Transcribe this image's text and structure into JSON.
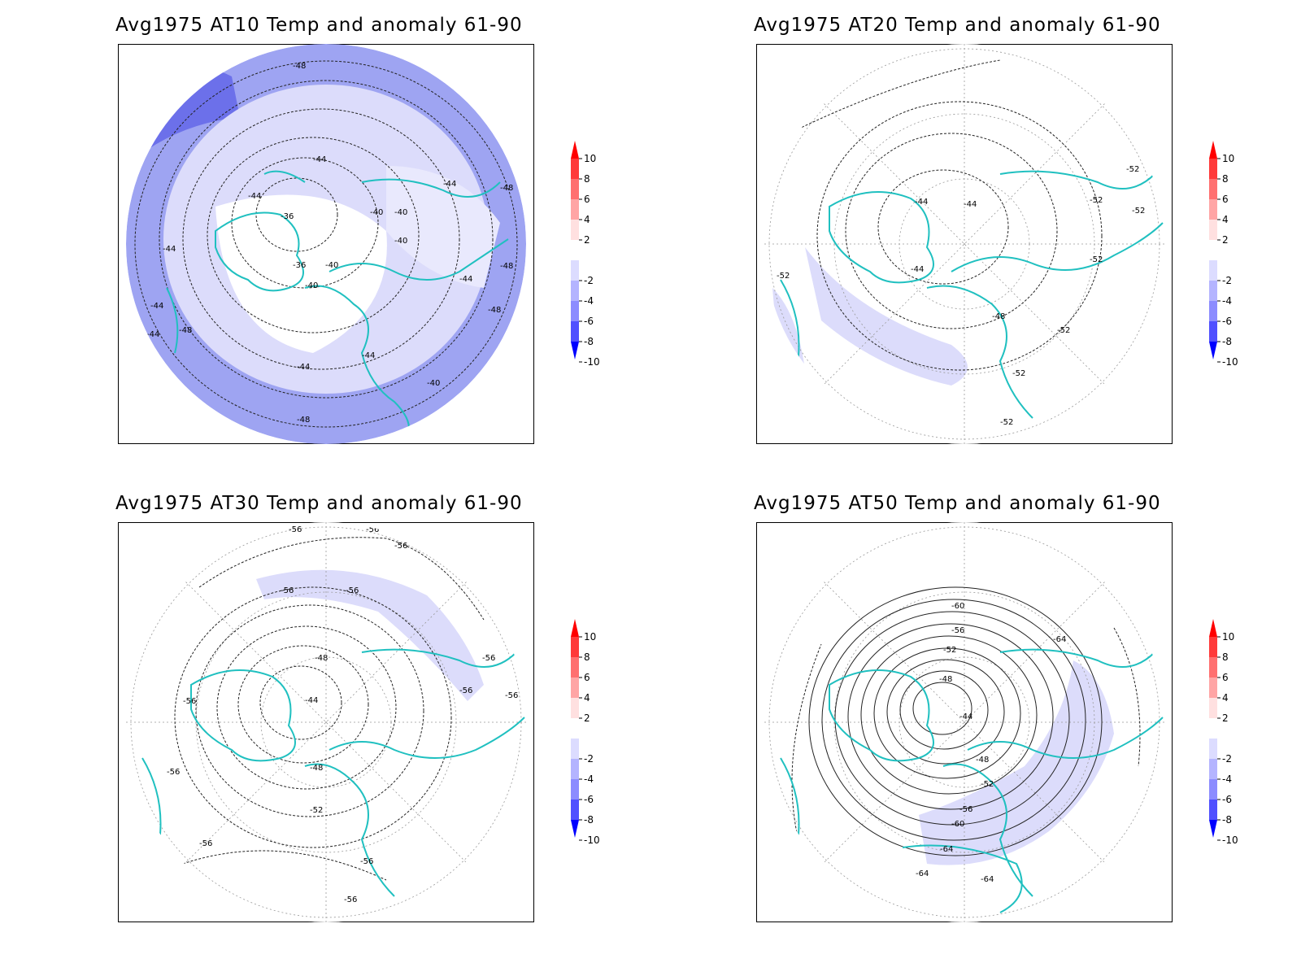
{
  "panels": [
    {
      "title": "Avg1975 AT10 Temp and anomaly 61-90",
      "contour_labels": [
        "-48",
        "-44",
        "-40",
        "-36",
        "-44",
        "-40",
        "-44",
        "-44",
        "-48",
        "-44",
        "-44",
        "-48",
        "-44",
        "-48",
        "-44",
        "-40",
        "-44",
        "-48",
        "-40",
        "-36",
        "-40",
        "-40",
        "-48"
      ],
      "anomaly_shading": "strong-negative"
    },
    {
      "title": "Avg1975 AT20 Temp and anomaly 61-90",
      "contour_labels": [
        "-44",
        "-44",
        "-44",
        "-52",
        "-52",
        "-52",
        "-52",
        "-52",
        "-48",
        "-52",
        "-52",
        "-52"
      ],
      "anomaly_shading": "weak-negative"
    },
    {
      "title": "Avg1975 AT30 Temp and anomaly 61-90",
      "contour_labels": [
        "-56",
        "-56",
        "-56",
        "-56",
        "-56",
        "-48",
        "-44",
        "-48",
        "-52",
        "-56",
        "-56",
        "-56",
        "-56",
        "-56",
        "-56",
        "-56",
        "-56"
      ],
      "anomaly_shading": "weak-negative"
    },
    {
      "title": "Avg1975 AT50 Temp and anomaly 61-90",
      "contour_labels": [
        "-60",
        "-56",
        "-52",
        "-48",
        "-44",
        "-48",
        "-52",
        "-56",
        "-60",
        "-64",
        "-64",
        "-64",
        "-64"
      ],
      "anomaly_shading": "moderate-negative"
    }
  ],
  "colorbar": {
    "ticks": [
      "10",
      "8",
      "6",
      "4",
      "2",
      "-2",
      "-4",
      "-6",
      "-8",
      "-10"
    ],
    "colors": [
      "#ff0000",
      "#ff3a3a",
      "#ff7070",
      "#ffa5a5",
      "#ffe0e0",
      "#ffffff",
      "#dcdcff",
      "#b4b4ff",
      "#8c8cff",
      "#5050ff",
      "#0000ff"
    ]
  },
  "coastline_color": "#20c0c0"
}
